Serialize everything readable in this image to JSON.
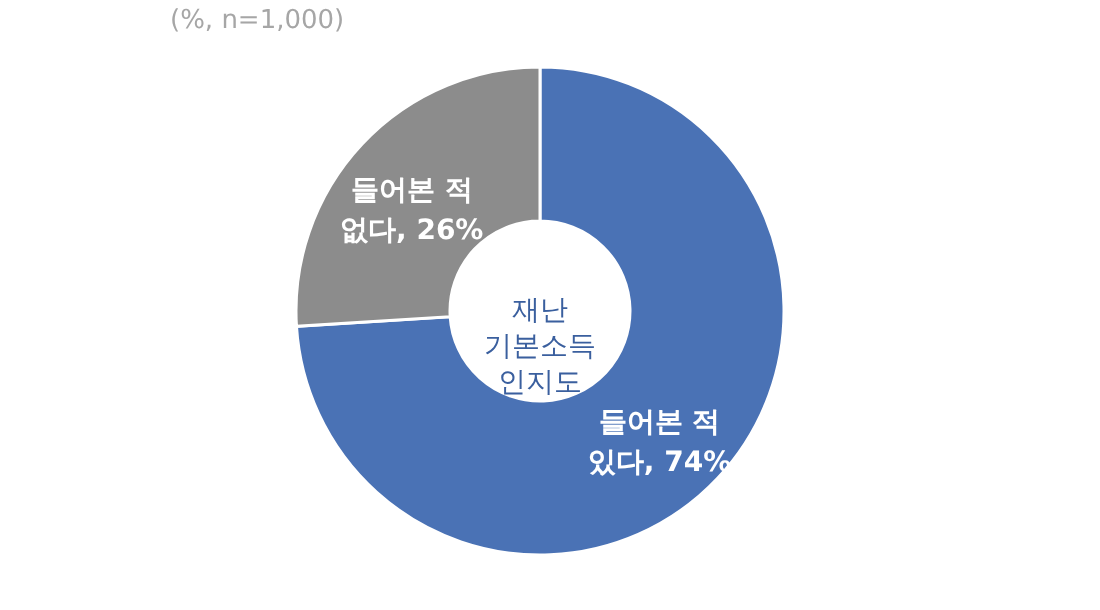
{
  "chart_data": {
    "type": "donut",
    "subtitle": "(%, n=1,000)",
    "categories": [
      "들어본 적 있다",
      "들어본 적 없다"
    ],
    "values": [
      74,
      26
    ],
    "value_labels": [
      "74%",
      "26%"
    ],
    "colors": [
      "#4a72b5",
      "#8c8c8c"
    ],
    "annotations": [
      "재난\n기본소득\n인지도"
    ],
    "legend": false
  }
}
